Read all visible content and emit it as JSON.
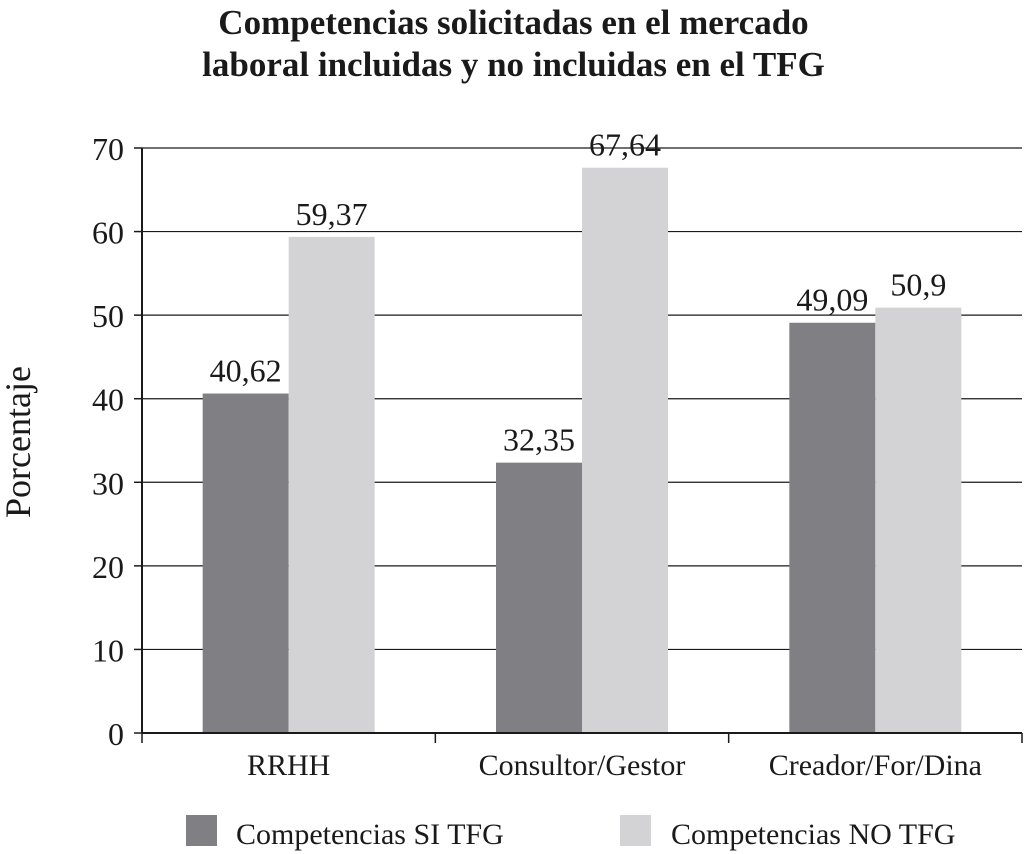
{
  "chart_data": {
    "type": "bar",
    "title_lines": [
      "Competencias solicitadas en el mercado",
      "laboral incluidas y no incluidas en el TFG"
    ],
    "xlabel": "",
    "ylabel": "Porcentaje",
    "ylim": [
      0,
      70
    ],
    "yticks": [
      0,
      10,
      20,
      30,
      40,
      50,
      60,
      70
    ],
    "grid": true,
    "legend_position": "bottom",
    "categories": [
      "RRHH",
      "Consultor/Gestor",
      "Creador/For/Dina"
    ],
    "series": [
      {
        "name": "Competencias SI TFG",
        "values": [
          40.62,
          32.35,
          49.09
        ],
        "labels": [
          "40,62",
          "32,35",
          "49,09"
        ],
        "color": "#808084"
      },
      {
        "name": "Competencias NO TFG",
        "values": [
          59.37,
          67.64,
          50.9
        ],
        "labels": [
          "59,37",
          "67,64",
          "50,9"
        ],
        "color": "#d3d3d5"
      }
    ]
  }
}
